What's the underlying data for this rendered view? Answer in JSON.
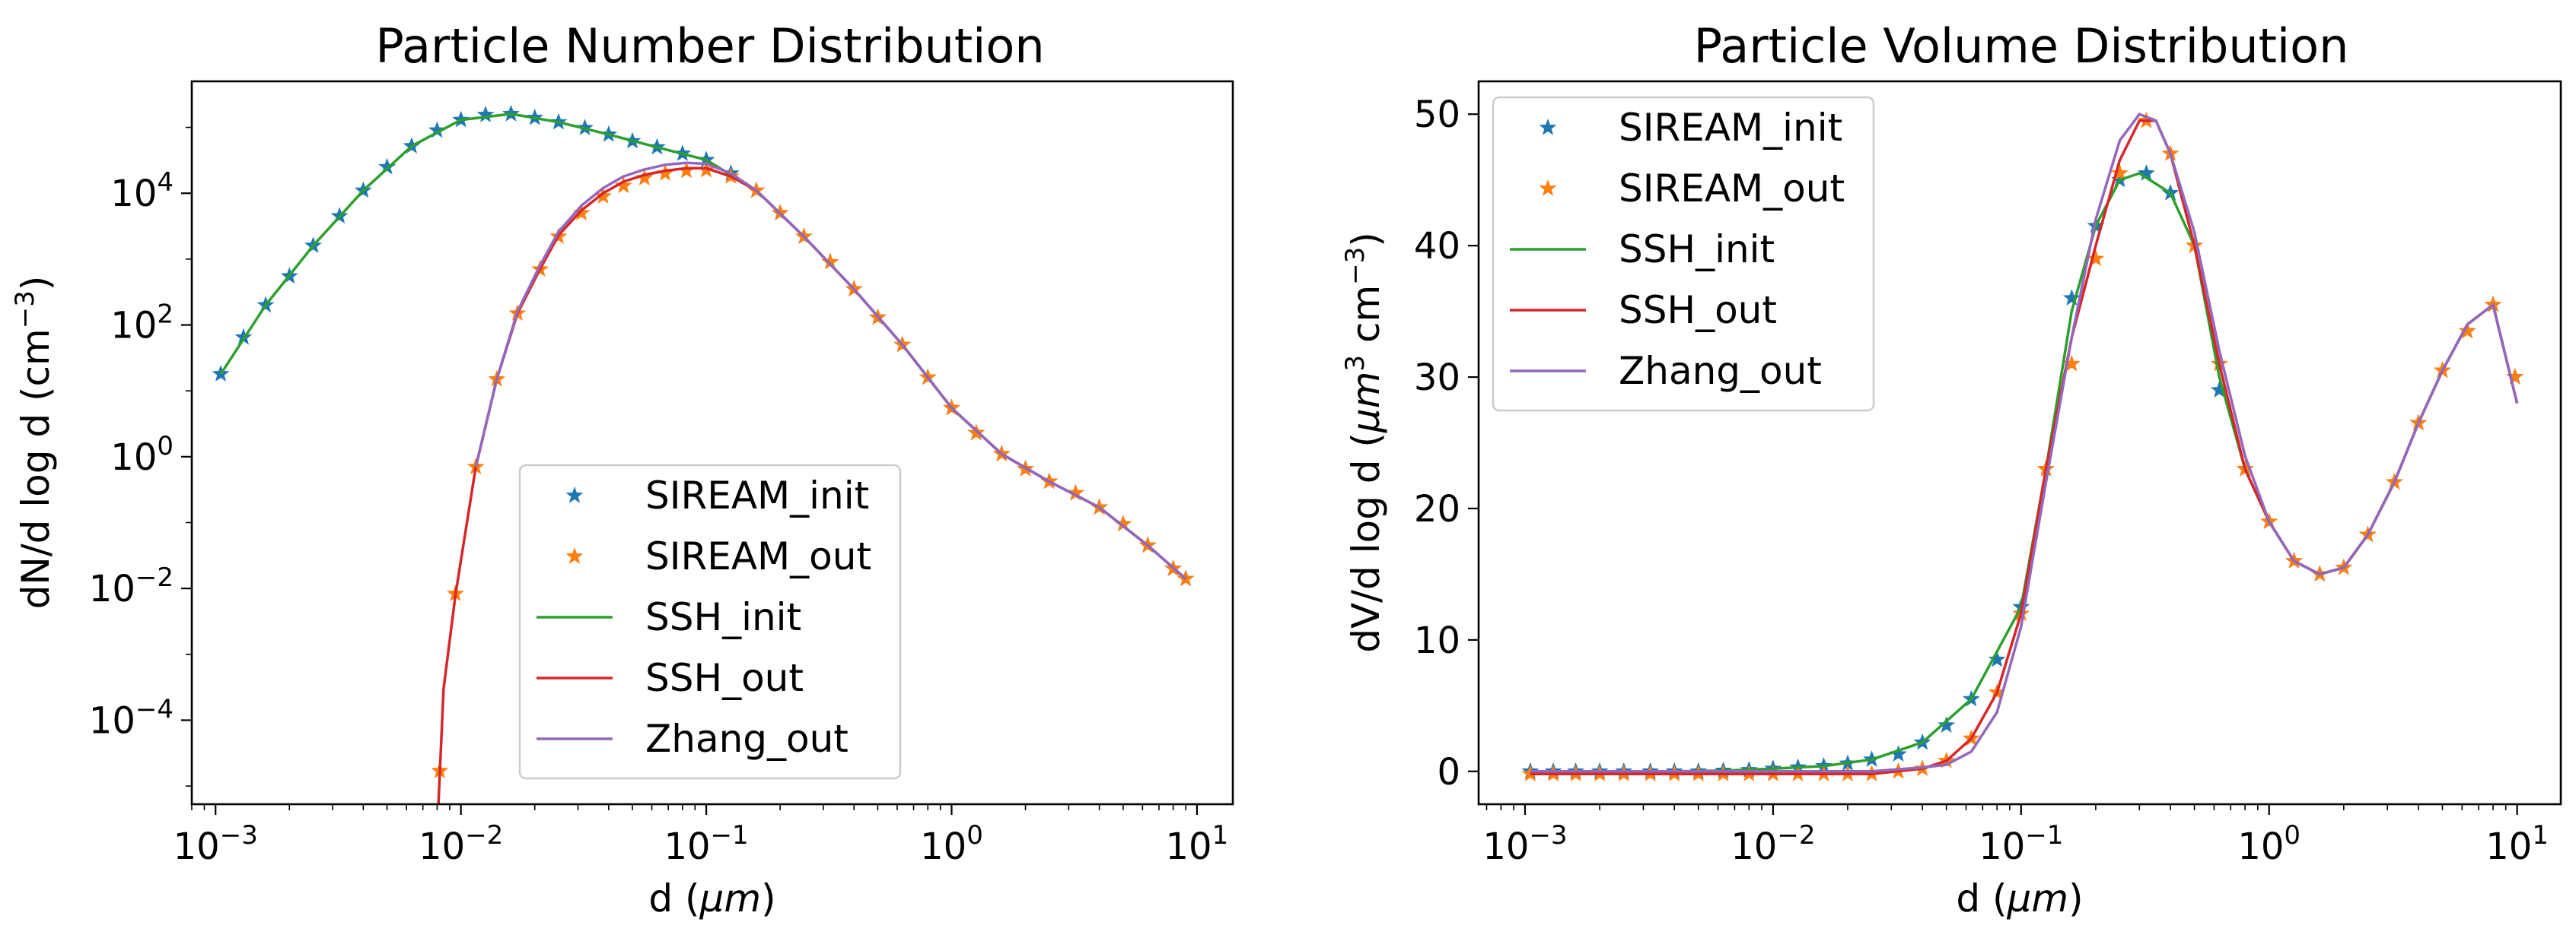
{
  "chart_data": [
    {
      "type": "line",
      "title": "Particle Number Distribution",
      "xlabel_prefix": "d (",
      "xlabel_unit": "μm",
      "xlabel_suffix": ")",
      "ylabel": "dN/d log d (cm",
      "ylabel_sup": "−3",
      "ylabel_suffix": ")",
      "xscale": "log",
      "yscale": "log",
      "xlim": [
        0.0008,
        14
      ],
      "ylim": [
        5.3e-06,
        500000
      ],
      "xticks": [
        {
          "v": 0.001,
          "base": "10",
          "exp": "−3"
        },
        {
          "v": 0.01,
          "base": "10",
          "exp": "−2"
        },
        {
          "v": 0.1,
          "base": "10",
          "exp": "−1"
        },
        {
          "v": 1,
          "base": "10",
          "exp": "0"
        },
        {
          "v": 10,
          "base": "10",
          "exp": "1"
        }
      ],
      "yticks": [
        {
          "v": 0.0001,
          "base": "10",
          "exp": "−4"
        },
        {
          "v": 0.01,
          "base": "10",
          "exp": "−2"
        },
        {
          "v": 1,
          "base": "10",
          "exp": "0"
        },
        {
          "v": 100,
          "base": "10",
          "exp": "2"
        },
        {
          "v": 10000,
          "base": "10",
          "exp": "4"
        }
      ],
      "legend_position": "lower-center",
      "series": [
        {
          "name": "SIREAM_init",
          "style": "markers",
          "color": "#1f77b4",
          "x": [
            0.00105,
            0.0013,
            0.0016,
            0.002,
            0.0025,
            0.0032,
            0.004,
            0.005,
            0.0063,
            0.008,
            0.01,
            0.0126,
            0.016,
            0.02,
            0.025,
            0.032,
            0.04,
            0.05,
            0.063,
            0.08,
            0.1,
            0.126,
            0.16,
            0.2,
            0.25,
            0.32,
            0.4,
            0.5,
            0.63,
            0.8,
            1.0,
            1.26,
            1.6,
            2.0,
            2.5,
            3.2,
            4.0,
            5.0,
            6.3,
            8.0,
            9.0
          ],
          "y": [
            18,
            65,
            200,
            550,
            1600,
            4500,
            11000,
            25000,
            52000,
            90000,
            130000,
            155000,
            160000,
            140000,
            120000,
            98000,
            78000,
            62000,
            50000,
            40000,
            32000,
            20000,
            11000,
            5000,
            2200,
            900,
            350,
            130,
            50,
            16,
            5.5,
            2.3,
            1.1,
            0.65,
            0.42,
            0.28,
            0.17,
            0.095,
            0.045,
            0.02,
            0.014
          ]
        },
        {
          "name": "SIREAM_out",
          "style": "markers",
          "color": "#ff7f0e",
          "x": [
            0.0082,
            0.0095,
            0.0115,
            0.014,
            0.017,
            0.021,
            0.025,
            0.031,
            0.038,
            0.046,
            0.056,
            0.068,
            0.083,
            0.1,
            0.126,
            0.16,
            0.2,
            0.25,
            0.32,
            0.4,
            0.5,
            0.63,
            0.8,
            1.0,
            1.26,
            1.6,
            2.0,
            2.5,
            3.2,
            4.0,
            5.0,
            6.3,
            8.0,
            9.0
          ],
          "y": [
            1.7e-05,
            0.0083,
            0.7,
            15,
            150,
            700,
            2200,
            5000,
            9000,
            13000,
            17000,
            20000,
            22000,
            22500,
            18000,
            11000,
            5000,
            2200,
            900,
            350,
            130,
            50,
            16,
            5.5,
            2.3,
            1.1,
            0.65,
            0.42,
            0.28,
            0.17,
            0.095,
            0.045,
            0.02,
            0.014
          ]
        },
        {
          "name": "SSH_init",
          "style": "line",
          "color": "#2ca02c",
          "x": [
            0.00105,
            0.0016,
            0.0025,
            0.004,
            0.0063,
            0.01,
            0.016,
            0.025,
            0.04,
            0.063,
            0.1,
            0.16,
            0.25,
            0.4,
            0.63,
            1.0,
            1.6,
            2.5,
            4.0,
            6.3,
            9.0
          ],
          "y": [
            18,
            200,
            1600,
            11000,
            52000,
            130000,
            160000,
            120000,
            78000,
            50000,
            32000,
            11000,
            2200,
            350,
            50,
            5.5,
            1.1,
            0.42,
            0.17,
            0.045,
            0.014
          ]
        },
        {
          "name": "SSH_out",
          "style": "line",
          "color": "#d62728",
          "x": [
            0.0081,
            0.0085,
            0.0095,
            0.0115,
            0.014,
            0.017,
            0.021,
            0.025,
            0.031,
            0.038,
            0.046,
            0.056,
            0.068,
            0.083,
            0.1,
            0.126,
            0.16,
            0.25,
            0.4,
            0.63,
            1.0,
            1.6,
            2.5,
            4.0,
            6.3,
            9.0
          ],
          "y": [
            5.3e-06,
            0.0003,
            0.008,
            0.7,
            15,
            150,
            700,
            2300,
            5500,
            10000,
            15000,
            19000,
            22000,
            24000,
            24000,
            18000,
            11000,
            2200,
            350,
            50,
            5.5,
            1.1,
            0.42,
            0.17,
            0.045,
            0.014
          ]
        },
        {
          "name": "Zhang_out",
          "style": "line",
          "color": "#9467bd",
          "x": [
            0.0115,
            0.014,
            0.017,
            0.021,
            0.025,
            0.031,
            0.038,
            0.046,
            0.056,
            0.068,
            0.083,
            0.1,
            0.126,
            0.16,
            0.25,
            0.4,
            0.63,
            1.0,
            1.6,
            2.5,
            4.0,
            6.3,
            9.0
          ],
          "y": [
            0.7,
            15,
            160,
            800,
            2600,
            6500,
            12000,
            18000,
            23000,
            27000,
            29000,
            28000,
            20000,
            11000,
            2200,
            350,
            50,
            5.5,
            1.1,
            0.42,
            0.17,
            0.045,
            0.014
          ]
        }
      ]
    },
    {
      "type": "line",
      "title": "Particle Volume Distribution",
      "xlabel_prefix": "d (",
      "xlabel_unit": "μm",
      "xlabel_suffix": ")",
      "ylabel_prefix": "dV/d log d (",
      "ylabel_unit": "μm",
      "ylabel_sup1": "3",
      "ylabel_mid": " cm",
      "ylabel_sup2": "−3",
      "ylabel_suffix": ")",
      "xscale": "log",
      "yscale": "linear",
      "xlim": [
        0.00065,
        15
      ],
      "ylim": [
        -2.5,
        52.5
      ],
      "xticks": [
        {
          "v": 0.001,
          "base": "10",
          "exp": "−3"
        },
        {
          "v": 0.01,
          "base": "10",
          "exp": "−2"
        },
        {
          "v": 0.1,
          "base": "10",
          "exp": "−1"
        },
        {
          "v": 1,
          "base": "10",
          "exp": "0"
        },
        {
          "v": 10,
          "base": "10",
          "exp": "1"
        }
      ],
      "yticks": [
        {
          "v": 0,
          "label": "0"
        },
        {
          "v": 10,
          "label": "10"
        },
        {
          "v": 20,
          "label": "20"
        },
        {
          "v": 30,
          "label": "30"
        },
        {
          "v": 40,
          "label": "40"
        },
        {
          "v": 50,
          "label": "50"
        }
      ],
      "legend_position": "top-left",
      "series": [
        {
          "name": "SIREAM_init",
          "style": "markers",
          "color": "#1f77b4",
          "x": [
            0.00105,
            0.0013,
            0.0016,
            0.002,
            0.0025,
            0.0032,
            0.004,
            0.005,
            0.0063,
            0.008,
            0.01,
            0.0126,
            0.016,
            0.02,
            0.025,
            0.032,
            0.04,
            0.05,
            0.063,
            0.08,
            0.1,
            0.126,
            0.16,
            0.2,
            0.25,
            0.32,
            0.4,
            0.5,
            0.63,
            0.8,
            1.0,
            1.26,
            1.6,
            2.0,
            2.5,
            3.2,
            4.0,
            5.0,
            6.3,
            8.0,
            9.8
          ],
          "y": [
            0,
            0,
            0,
            0,
            0,
            0,
            0,
            0,
            0.05,
            0.1,
            0.2,
            0.3,
            0.4,
            0.6,
            0.9,
            1.3,
            2.2,
            3.5,
            5.5,
            8.5,
            12.5,
            23,
            36,
            41.5,
            45,
            45.5,
            44,
            40,
            29,
            23,
            19,
            16,
            15,
            15.5,
            18,
            22,
            26.5,
            30.5,
            33.5,
            35.5,
            30
          ]
        },
        {
          "name": "SIREAM_out",
          "style": "markers",
          "color": "#ff7f0e",
          "x": [
            0.00105,
            0.0013,
            0.0016,
            0.002,
            0.0025,
            0.0032,
            0.004,
            0.005,
            0.0063,
            0.008,
            0.01,
            0.0126,
            0.016,
            0.02,
            0.025,
            0.032,
            0.04,
            0.05,
            0.063,
            0.08,
            0.1,
            0.126,
            0.16,
            0.2,
            0.25,
            0.32,
            0.4,
            0.5,
            0.63,
            0.8,
            1.0,
            1.26,
            1.6,
            2.0,
            2.5,
            3.2,
            4.0,
            5.0,
            6.3,
            8.0,
            9.8
          ],
          "y": [
            -0.2,
            -0.2,
            -0.2,
            -0.2,
            -0.2,
            -0.2,
            -0.2,
            -0.2,
            -0.2,
            -0.2,
            -0.2,
            -0.2,
            -0.2,
            -0.2,
            -0.2,
            0,
            0.2,
            0.8,
            2.5,
            6,
            12,
            23,
            31,
            39,
            45.5,
            49.5,
            47,
            40,
            31,
            23,
            19,
            16,
            15,
            15.5,
            18,
            22,
            26.5,
            30.5,
            33.5,
            35.5,
            30
          ]
        },
        {
          "name": "SSH_init",
          "style": "line",
          "color": "#2ca02c",
          "x": [
            0.00105,
            0.002,
            0.004,
            0.0063,
            0.01,
            0.016,
            0.025,
            0.04,
            0.063,
            0.1,
            0.126,
            0.16,
            0.2,
            0.25,
            0.3,
            0.4,
            0.5,
            0.63,
            0.8,
            1.0,
            1.26,
            1.6,
            2.0,
            2.5,
            3.2,
            4.0,
            5.0,
            6.3,
            8.0,
            10
          ],
          "y": [
            0,
            0,
            0,
            0.05,
            0.2,
            0.4,
            0.9,
            2.2,
            5.5,
            12.5,
            23,
            35,
            41.5,
            45,
            45.5,
            44,
            40,
            30,
            23,
            19,
            16,
            15,
            15.5,
            18,
            22,
            26.5,
            30.5,
            34,
            35.5,
            28
          ]
        },
        {
          "name": "SSH_out",
          "style": "line",
          "color": "#d62728",
          "x": [
            0.00105,
            0.002,
            0.004,
            0.0063,
            0.01,
            0.016,
            0.025,
            0.04,
            0.05,
            0.063,
            0.08,
            0.1,
            0.126,
            0.16,
            0.2,
            0.25,
            0.3,
            0.35,
            0.4,
            0.5,
            0.63,
            0.8,
            1.0,
            1.26,
            1.6,
            2.0,
            2.5,
            3.2,
            4.0,
            5.0,
            6.3,
            8.0,
            10
          ],
          "y": [
            -0.2,
            -0.2,
            -0.2,
            -0.2,
            -0.2,
            -0.2,
            -0.2,
            0.2,
            0.8,
            2.5,
            6,
            12,
            23,
            33,
            40,
            46.5,
            49.5,
            49.5,
            47,
            40,
            31,
            23,
            19,
            16,
            15,
            15.5,
            18,
            22,
            26.5,
            30.5,
            34,
            35.5,
            28
          ]
        },
        {
          "name": "Zhang_out",
          "style": "line",
          "color": "#9467bd",
          "x": [
            0.00105,
            0.002,
            0.004,
            0.0063,
            0.01,
            0.016,
            0.025,
            0.04,
            0.05,
            0.063,
            0.08,
            0.1,
            0.126,
            0.16,
            0.2,
            0.25,
            0.3,
            0.35,
            0.4,
            0.5,
            0.63,
            0.8,
            1.0,
            1.26,
            1.6,
            2.0,
            2.5,
            3.2,
            4.0,
            5.0,
            6.3,
            8.0,
            10
          ],
          "y": [
            0,
            0,
            0,
            0,
            0,
            0,
            0,
            0.3,
            0.5,
            1.5,
            4.5,
            11,
            22,
            33,
            42,
            48,
            50,
            49.5,
            47,
            41,
            32,
            24,
            19,
            16,
            15,
            15.5,
            18,
            22,
            26.5,
            30.5,
            34,
            35.5,
            28
          ]
        }
      ]
    }
  ]
}
